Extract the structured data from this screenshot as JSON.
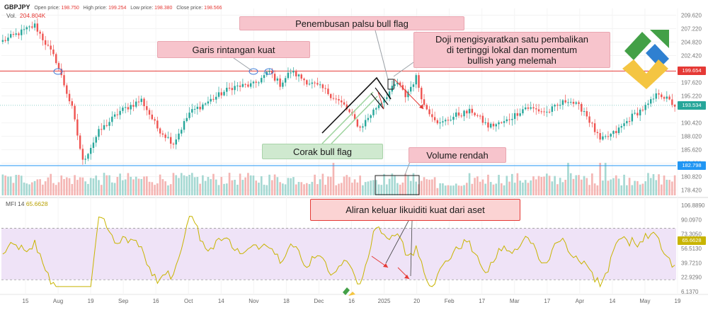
{
  "header": {
    "symbol": "GBPJPY",
    "open_label": "Open price:",
    "open_value": "198.750",
    "high_label": "High price:",
    "high_value": "199.254",
    "low_label": "Low price:",
    "low_value": "198.380",
    "close_label": "Close price:",
    "close_value": "198.566",
    "vol_label": "Vol.",
    "vol_value": "204.804K"
  },
  "annotations": {
    "false_breakout": "Penembusan palsu bull flag",
    "doji": "Doji mengisyaratkan satu pembalikan\ndi tertinggi lokal dan momentum\nbullish yang melemah",
    "resistance": "Garis rintangan kuat",
    "bull_flag": "Corak bull flag",
    "low_volume": "Volume rendah",
    "outflow": "Aliran keluar likuiditi kuat dari aset"
  },
  "mfi": {
    "label": "MFI 14",
    "value": "65.6628",
    "axis_ticks": [
      106.889,
      90.097,
      73.305,
      56.513,
      39.721,
      22.929,
      6.137
    ],
    "axis_labels": [
      "106.8890",
      "90.0970",
      "73.3050",
      "56.5130",
      "39.7210",
      "22.9290",
      "6.1370"
    ],
    "upper_band": 80,
    "lower_band": 20,
    "line_color": "#c8b400",
    "band_fill": "#efe3f7"
  },
  "price_axis": {
    "ticks": [
      209.62,
      207.22,
      204.82,
      202.42,
      197.62,
      195.22,
      190.42,
      188.02,
      185.62,
      183.22,
      180.82,
      178.42
    ],
    "labels": [
      "209.620",
      "207.220",
      "204.820",
      "202.420",
      "197.620",
      "195.220",
      "190.420",
      "188.020",
      "185.620",
      "183.220",
      "180.820",
      "178.420"
    ],
    "resistance_tag": "199.654",
    "current_tag": "193.534",
    "support_tag": "182.798",
    "resistance_color": "#e53935",
    "current_color": "#26a69a",
    "support_color": "#2196f3"
  },
  "time_axis": {
    "labels": [
      "15",
      "Aug",
      "19",
      "Sep",
      "16",
      "Oct",
      "14",
      "Nov",
      "18",
      "Dec",
      "16",
      "2025",
      "20",
      "Feb",
      "17",
      "Mar",
      "17",
      "Apr",
      "14",
      "May",
      "19"
    ]
  },
  "chart_data": {
    "type": "candlestick",
    "symbol": "GBPJPY",
    "period": "2024-07 to 2025-05",
    "y_range": [
      177.5,
      210.8
    ],
    "levels": {
      "resistance": 199.654,
      "current": 193.534,
      "support": 182.798
    },
    "close_anchors": [
      [
        0,
        205.0
      ],
      [
        12,
        207.8
      ],
      [
        20,
        201.5
      ],
      [
        26,
        193.0
      ],
      [
        30,
        183.5
      ],
      [
        36,
        188.8
      ],
      [
        44,
        192.5
      ],
      [
        52,
        194.5
      ],
      [
        58,
        189.5
      ],
      [
        64,
        186.8
      ],
      [
        70,
        192.2
      ],
      [
        78,
        194.5
      ],
      [
        86,
        196.8
      ],
      [
        94,
        197.2
      ],
      [
        100,
        199.5
      ],
      [
        104,
        197.3
      ],
      [
        108,
        199.6
      ],
      [
        114,
        197.8
      ],
      [
        120,
        196.5
      ],
      [
        128,
        193.5
      ],
      [
        134,
        189.5
      ],
      [
        140,
        193.2
      ],
      [
        148,
        197.6
      ],
      [
        151,
        195.2
      ],
      [
        155,
        198.5
      ],
      [
        158,
        193.5
      ],
      [
        164,
        190.2
      ],
      [
        170,
        191.8
      ],
      [
        176,
        192.5
      ],
      [
        182,
        189.8
      ],
      [
        188,
        190.5
      ],
      [
        196,
        193.2
      ],
      [
        204,
        192.3
      ],
      [
        212,
        194.6
      ],
      [
        218,
        192.6
      ],
      [
        224,
        187.2
      ],
      [
        230,
        188.8
      ],
      [
        236,
        191.6
      ],
      [
        242,
        193.6
      ],
      [
        246,
        195.8
      ],
      [
        252,
        193.5
      ]
    ],
    "up_color": "#26a69a",
    "down_color": "#ef5350"
  },
  "logo_alt": "LiteFinance"
}
